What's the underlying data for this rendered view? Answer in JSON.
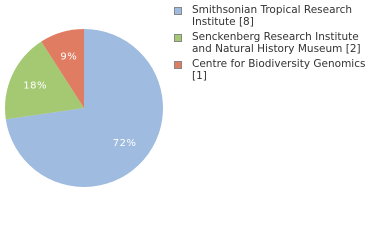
{
  "chart_data": {
    "type": "pie",
    "categories": [
      "Smithsonian Tropical Research Institute [8]",
      "Senckenberg Research Institute and Natural History Museum [2]",
      "Centre for Biodiversity Genomics [1]"
    ],
    "values": [
      72,
      18,
      9
    ],
    "value_labels": [
      "72%",
      "18%",
      "9%"
    ],
    "colors": [
      "#9fbbe0",
      "#a5c972",
      "#e07c62"
    ]
  }
}
